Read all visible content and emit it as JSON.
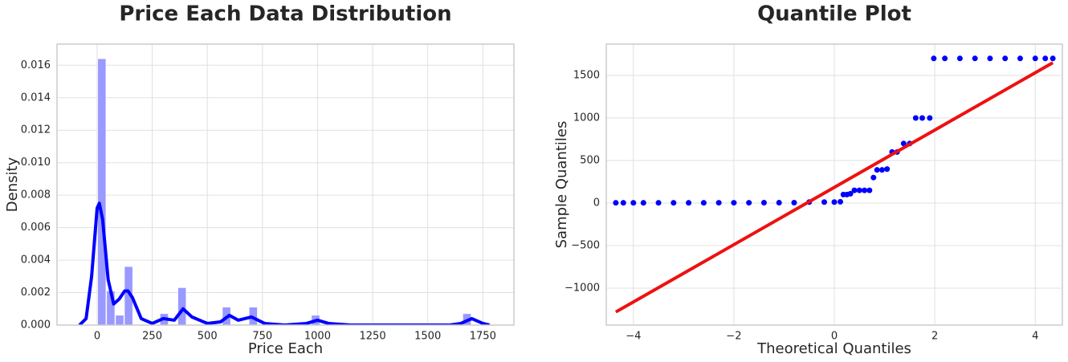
{
  "chart_data": [
    {
      "type": "histogram",
      "title": "Price Each Data Distribution",
      "xlabel": "Price Each",
      "ylabel": "Density",
      "bins": [
        2.99,
        43.4,
        83.8,
        124.2,
        164.6,
        205.0,
        245.4,
        285.8,
        326.2,
        366.6,
        407.0,
        447.4,
        487.8,
        528.2,
        568.6,
        609.0,
        649.4,
        689.8,
        730.3,
        770.7,
        811.1,
        851.5,
        891.9,
        932.3,
        972.7,
        1013.1,
        1053.5,
        1093.9,
        1134.3,
        1174.7,
        1215.1,
        1255.5,
        1295.9,
        1336.3,
        1376.7,
        1417.1,
        1457.5,
        1497.9,
        1538.3,
        1578.7,
        1619.1,
        1659.5,
        1700
      ],
      "values": [
        0.0164,
        0.0021,
        0.0006,
        0.0036,
        0,
        0,
        0,
        0.0007,
        0,
        0.0023,
        0,
        0,
        0,
        0,
        0.0011,
        0,
        0,
        0.0011,
        0,
        0,
        0,
        0,
        0,
        0,
        0.0006,
        0,
        0,
        0,
        0,
        0,
        0,
        0,
        0,
        0,
        0,
        0,
        0,
        0,
        0,
        0,
        0,
        0.0007
      ],
      "color": "#9999ff",
      "kde": {
        "color": "#0000ff",
        "x": [
          -80,
          -50,
          -25,
          0,
          10,
          25,
          50,
          75,
          100,
          125,
          140,
          160,
          200,
          250,
          300,
          350,
          390,
          430,
          500,
          560,
          600,
          640,
          700,
          760,
          850,
          950,
          1000,
          1050,
          1150,
          1300,
          1500,
          1600,
          1650,
          1700,
          1750,
          1780
        ],
        "y": [
          0,
          0.0004,
          0.003,
          0.0072,
          0.0075,
          0.0065,
          0.0028,
          0.0013,
          0.0016,
          0.0021,
          0.0021,
          0.0017,
          0.0004,
          0.0001,
          0.0004,
          0.0003,
          0.001,
          0.0005,
          0.0001,
          0.0002,
          0.0006,
          0.0003,
          0.0005,
          0.0001,
          0,
          0.0001,
          0.0003,
          0.0001,
          0,
          0,
          0,
          0,
          0.0001,
          0.0004,
          0.0001,
          0
        ]
      },
      "xlim": [
        -182,
        1891
      ],
      "ylim": [
        0,
        0.0173
      ],
      "xticks": [
        0,
        250,
        500,
        750,
        1000,
        1250,
        1500,
        1750
      ],
      "yticks": [
        {
          "value": 0,
          "label": "0.000"
        },
        {
          "value": 0.002,
          "label": "0.002"
        },
        {
          "value": 0.004,
          "label": "0.004"
        },
        {
          "value": 0.006,
          "label": "0.006"
        },
        {
          "value": 0.008,
          "label": "0.008"
        },
        {
          "value": 0.01,
          "label": "0.010"
        },
        {
          "value": 0.012,
          "label": "0.012"
        },
        {
          "value": 0.014,
          "label": "0.014"
        },
        {
          "value": 0.016,
          "label": "0.016"
        }
      ],
      "grid": true
    },
    {
      "type": "scatter",
      "title": "Quantile Plot",
      "xlabel": "Theoretical Quantiles",
      "ylabel": "Sample Quantiles",
      "x": [
        -4.35,
        -4.2,
        -4.0,
        -3.8,
        -3.5,
        -3.2,
        -2.9,
        -2.6,
        -2.3,
        -2.0,
        -1.7,
        -1.4,
        -1.1,
        -0.8,
        -0.5,
        -0.2,
        0.0,
        0.12,
        0.18,
        0.25,
        0.32,
        0.4,
        0.5,
        0.6,
        0.7,
        0.78,
        0.85,
        0.95,
        1.05,
        1.15,
        1.25,
        1.38,
        1.5,
        1.62,
        1.75,
        1.9,
        1.98,
        2.2,
        2.5,
        2.8,
        3.1,
        3.4,
        3.7,
        4.0,
        4.2,
        4.35
      ],
      "y": [
        3,
        3,
        3,
        3,
        3,
        3,
        3,
        3,
        4,
        4,
        4,
        5,
        5,
        5,
        12,
        12,
        12,
        15,
        100,
        100,
        110,
        150,
        150,
        150,
        150,
        300,
        390,
        390,
        400,
        600,
        600,
        700,
        700,
        1000,
        1000,
        1000,
        1700,
        1700,
        1700,
        1700,
        1700,
        1700,
        1700,
        1700,
        1700,
        1700
      ],
      "color": "#0000ff",
      "fit_line": {
        "color": "#ee1111",
        "x": [
          -4.35,
          4.35
        ],
        "y": [
          -1280,
          1650
        ]
      },
      "xlim": [
        -4.54,
        4.54
      ],
      "ylim": [
        -1434,
        1868
      ],
      "xticks": [
        {
          "value": -4,
          "label": "−4"
        },
        {
          "value": -2,
          "label": "−2"
        },
        0,
        2,
        4
      ],
      "yticks": [
        {
          "value": -1000,
          "label": "−1000"
        },
        {
          "value": -500,
          "label": "−500"
        },
        0,
        500,
        1000,
        1500
      ],
      "grid": true
    }
  ]
}
